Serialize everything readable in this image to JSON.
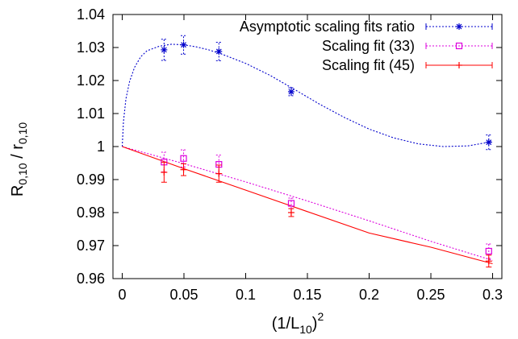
{
  "chart_data": {
    "type": "scatter",
    "title": "",
    "xlabel": {
      "main": "(1/L",
      "sub": "10",
      "close": ")",
      "sup": "2"
    },
    "ylabel": {
      "main1": "R",
      "sub1": "0,10",
      "sep": " / r",
      "sub2": "0,10"
    },
    "xlim": [
      -0.0075,
      0.3075
    ],
    "ylim": [
      0.96,
      1.04
    ],
    "x_ticks": [
      0,
      0.05,
      0.1,
      0.15,
      0.2,
      0.25,
      0.3
    ],
    "x_tick_labels": [
      "0",
      "0.05",
      "0.1",
      "0.15",
      "0.2",
      "0.25",
      "0.3"
    ],
    "y_ticks": [
      0.96,
      0.97,
      0.98,
      0.99,
      1.0,
      1.01,
      1.02,
      1.03,
      1.04
    ],
    "y_tick_labels": [
      "0.96",
      "0.97",
      "0.98",
      "0.99",
      "1",
      "1.01",
      "1.02",
      "1.03",
      "1.04"
    ],
    "grid": false,
    "legend_position": "top-right",
    "series": [
      {
        "name": "Asymptotic scaling fits ratio",
        "color": "#0000cc",
        "marker": "asterisk",
        "line_style": "dotted",
        "points": [
          {
            "x": 0.0339,
            "y": 1.0293,
            "err": 0.0032
          },
          {
            "x": 0.0497,
            "y": 1.0308,
            "err": 0.0028
          },
          {
            "x": 0.0783,
            "y": 1.0288,
            "err": 0.0028
          },
          {
            "x": 0.1369,
            "y": 1.0166,
            "err": 0.0012
          },
          {
            "x": 0.2969,
            "y": 1.0013,
            "err": 0.0022
          }
        ],
        "fit_curve": [
          [
            0,
            1.0
          ],
          [
            0.001,
            1.0075
          ],
          [
            0.003,
            1.0145
          ],
          [
            0.006,
            1.0198
          ],
          [
            0.01,
            1.024
          ],
          [
            0.015,
            1.0272
          ],
          [
            0.02,
            1.029
          ],
          [
            0.03,
            1.0304
          ],
          [
            0.04,
            1.031
          ],
          [
            0.05,
            1.0308
          ],
          [
            0.06,
            1.0302
          ],
          [
            0.07,
            1.0293
          ],
          [
            0.08,
            1.0281
          ],
          [
            0.1,
            1.0252
          ],
          [
            0.12,
            1.0215
          ],
          [
            0.14,
            1.0172
          ],
          [
            0.16,
            1.0128
          ],
          [
            0.18,
            1.0088
          ],
          [
            0.2,
            1.0053
          ],
          [
            0.22,
            1.0026
          ],
          [
            0.24,
            1.0008
          ],
          [
            0.26,
            1.0
          ],
          [
            0.28,
            1.0002
          ],
          [
            0.3,
            1.0015
          ]
        ]
      },
      {
        "name": "Scaling fit (33)",
        "color": "#dd00dd",
        "marker": "open-square",
        "line_style": "dotted",
        "points": [
          {
            "x": 0.0339,
            "y": 0.9953,
            "err": 0.003
          },
          {
            "x": 0.0497,
            "y": 0.9964,
            "err": 0.0026
          },
          {
            "x": 0.0783,
            "y": 0.9946,
            "err": 0.0028
          },
          {
            "x": 0.1369,
            "y": 0.9828,
            "err": 0.0016
          },
          {
            "x": 0.2969,
            "y": 0.9683,
            "err": 0.0022
          }
        ],
        "fit_curve": [
          [
            0,
            1.0
          ],
          [
            0.05,
            0.9948
          ],
          [
            0.1,
            0.9893
          ],
          [
            0.15,
            0.9835
          ],
          [
            0.2,
            0.9775
          ],
          [
            0.25,
            0.9713
          ],
          [
            0.3,
            0.9655
          ]
        ]
      },
      {
        "name": "Scaling fit (45)",
        "color": "#ff0000",
        "marker": "plus",
        "line_style": "solid",
        "points": [
          {
            "x": 0.0339,
            "y": 0.9922,
            "err": 0.003
          },
          {
            "x": 0.0497,
            "y": 0.993,
            "err": 0.0018
          },
          {
            "x": 0.0783,
            "y": 0.9918,
            "err": 0.0026
          },
          {
            "x": 0.1369,
            "y": 0.98,
            "err": 0.0012
          },
          {
            "x": 0.2969,
            "y": 0.9653,
            "err": 0.0018
          }
        ],
        "fit_curve": [
          [
            0,
            1.0
          ],
          [
            0.05,
            0.9933
          ],
          [
            0.1,
            0.9868
          ],
          [
            0.15,
            0.9803
          ],
          [
            0.2,
            0.9738
          ],
          [
            0.25,
            0.9695
          ],
          [
            0.3,
            0.9645
          ]
        ]
      }
    ]
  }
}
